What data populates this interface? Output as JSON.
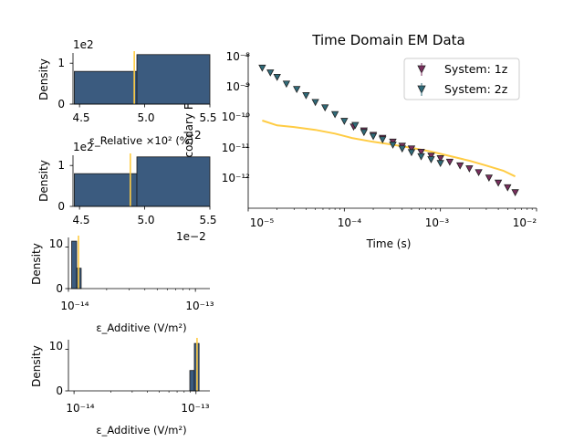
{
  "colors": {
    "bar": "#3b5b7f",
    "bar_edge": "#1a1a1a",
    "marker_line": "#ffcc44",
    "system_1z": "#7a2f5e",
    "system_2z": "#2f6b7a",
    "curve": "#ffcc44"
  },
  "chart_data": [
    {
      "id": "relative_hist_1",
      "type": "histogram",
      "xlabel": "ε_Relative ×10² (%)",
      "ylabel": "Density",
      "exponent_label": "1e2",
      "offset_label": "−2",
      "xlim": [
        4.45,
        5.5
      ],
      "ylim": [
        0,
        1.25
      ],
      "ytick_labels": [
        "0",
        "1"
      ],
      "xtick_labels": [
        "4.5",
        "5.0",
        "5.5"
      ],
      "bins": [
        {
          "x0": 4.46,
          "x1": 4.94,
          "value": 0.8
        },
        {
          "x0": 4.94,
          "x1": 5.5,
          "value": 1.21
        }
      ],
      "vline": 4.92
    },
    {
      "id": "relative_hist_2",
      "type": "histogram",
      "xlabel": "",
      "ylabel": "Density",
      "exponent_label": "1e2",
      "offset_label": "1e−2",
      "xlim": [
        4.45,
        5.5
      ],
      "ylim": [
        0,
        1.25
      ],
      "ytick_labels": [
        "0",
        "1"
      ],
      "xtick_labels": [
        "4.5",
        "5.0",
        "5.5"
      ],
      "bins": [
        {
          "x0": 4.46,
          "x1": 4.94,
          "value": 0.8
        },
        {
          "x0": 4.94,
          "x1": 5.5,
          "value": 1.21
        }
      ],
      "vline": 4.89
    },
    {
      "id": "additive_hist_1",
      "type": "histogram",
      "xscale": "log",
      "xlabel": "ε_Additive (V/m²)",
      "ylabel": "Density",
      "xlim": [
        1e-14,
        1.3e-13
      ],
      "ylim": [
        0,
        12.3
      ],
      "ytick_labels": [
        "0",
        "10"
      ],
      "xtick_labels": [
        "10⁻¹⁴",
        "10⁻¹³"
      ],
      "bins": [
        {
          "x0": 1.06e-14,
          "x1": 1.16e-14,
          "value": 11.4
        },
        {
          "x0": 1.16e-14,
          "x1": 1.26e-14,
          "value": 4.9
        }
      ],
      "vline": 1.2e-14
    },
    {
      "id": "additive_hist_2",
      "type": "histogram",
      "xscale": "log",
      "xlabel": "ε_Additive (V/m²)",
      "ylabel": "Density",
      "xlim": [
        9e-15,
        1.3e-13
      ],
      "ylim": [
        0,
        12.3
      ],
      "ytick_labels": [
        "0",
        "10"
      ],
      "xtick_labels": [
        "10⁻¹⁴",
        "10⁻¹³"
      ],
      "bins": [
        {
          "x0": 8.9e-14,
          "x1": 9.7e-14,
          "value": 4.9
        },
        {
          "x0": 9.7e-14,
          "x1": 1.06e-13,
          "value": 11.4
        }
      ],
      "vline": 1.02e-13
    },
    {
      "id": "tem_data",
      "type": "scatter",
      "xscale": "log",
      "yscale": "log",
      "title": "Time Domain EM Data",
      "xlabel": "Time (s)",
      "ylabel": "Secondary Field",
      "xlim": [
        1e-05,
        0.01
      ],
      "ylim": [
        1e-13,
        1e-08
      ],
      "xtick_labels": [
        "10⁻⁵",
        "10⁻⁴",
        "10⁻³",
        "10⁻²"
      ],
      "ytick_labels": [
        "10⁻¹²",
        "10⁻¹¹",
        "10⁻¹⁰",
        "10⁻⁹",
        "10⁻⁸"
      ],
      "legend": "upper right",
      "series": [
        {
          "name": "System: 1z",
          "x": [
            0.000125,
            0.00016,
            0.0002,
            0.00025,
            0.00032,
            0.0004,
            0.0005,
            0.00063,
            0.0008,
            0.001,
            0.00125,
            0.0016,
            0.002,
            0.0025,
            0.0032,
            0.004,
            0.005,
            0.006
          ],
          "y": [
            4.7e-11,
            3.5e-11,
            2.5e-11,
            2e-11,
            1.5e-11,
            1.1e-11,
            9e-12,
            7e-12,
            5.2e-12,
            4.3e-12,
            3.3e-12,
            2.5e-12,
            2e-12,
            1.5e-12,
            1e-12,
            6.8e-13,
            4.8e-13,
            3.3e-13
          ]
        },
        {
          "name": "System: 2z",
          "x": [
            1.4e-05,
            1.7e-05,
            2e-05,
            2.5e-05,
            3.2e-05,
            4e-05,
            5e-05,
            6.3e-05,
            8e-05,
            0.0001,
            0.00013,
            0.00016,
            0.0002,
            0.00025,
            0.00032,
            0.0004,
            0.0005,
            0.00063,
            0.0008,
            0.001
          ],
          "y": [
            4e-09,
            2.8e-09,
            2e-09,
            1.2e-09,
            8e-10,
            5e-10,
            3e-10,
            2e-10,
            1.2e-10,
            7.2e-11,
            5.3e-11,
            3.1e-11,
            2.3e-11,
            1.8e-11,
            1.2e-11,
            9e-12,
            6.8e-12,
            5e-12,
            4e-12,
            3e-12
          ]
        },
        {
          "name": "",
          "style": "line",
          "x": [
            1.4e-05,
            2e-05,
            3e-05,
            5e-05,
            8e-05,
            0.00012,
            0.0002,
            0.0003,
            0.0005,
            0.0008,
            0.0012,
            0.002,
            0.003,
            0.0045,
            0.006
          ],
          "y": [
            7.5e-11,
            5.2e-11,
            4.6e-11,
            3.7e-11,
            2.8e-11,
            2e-11,
            1.5e-11,
            1.25e-11,
            9.5e-12,
            7.2e-12,
            5.3e-12,
            3.6e-12,
            2.5e-12,
            1.7e-12,
            1.1e-12
          ]
        }
      ]
    }
  ]
}
